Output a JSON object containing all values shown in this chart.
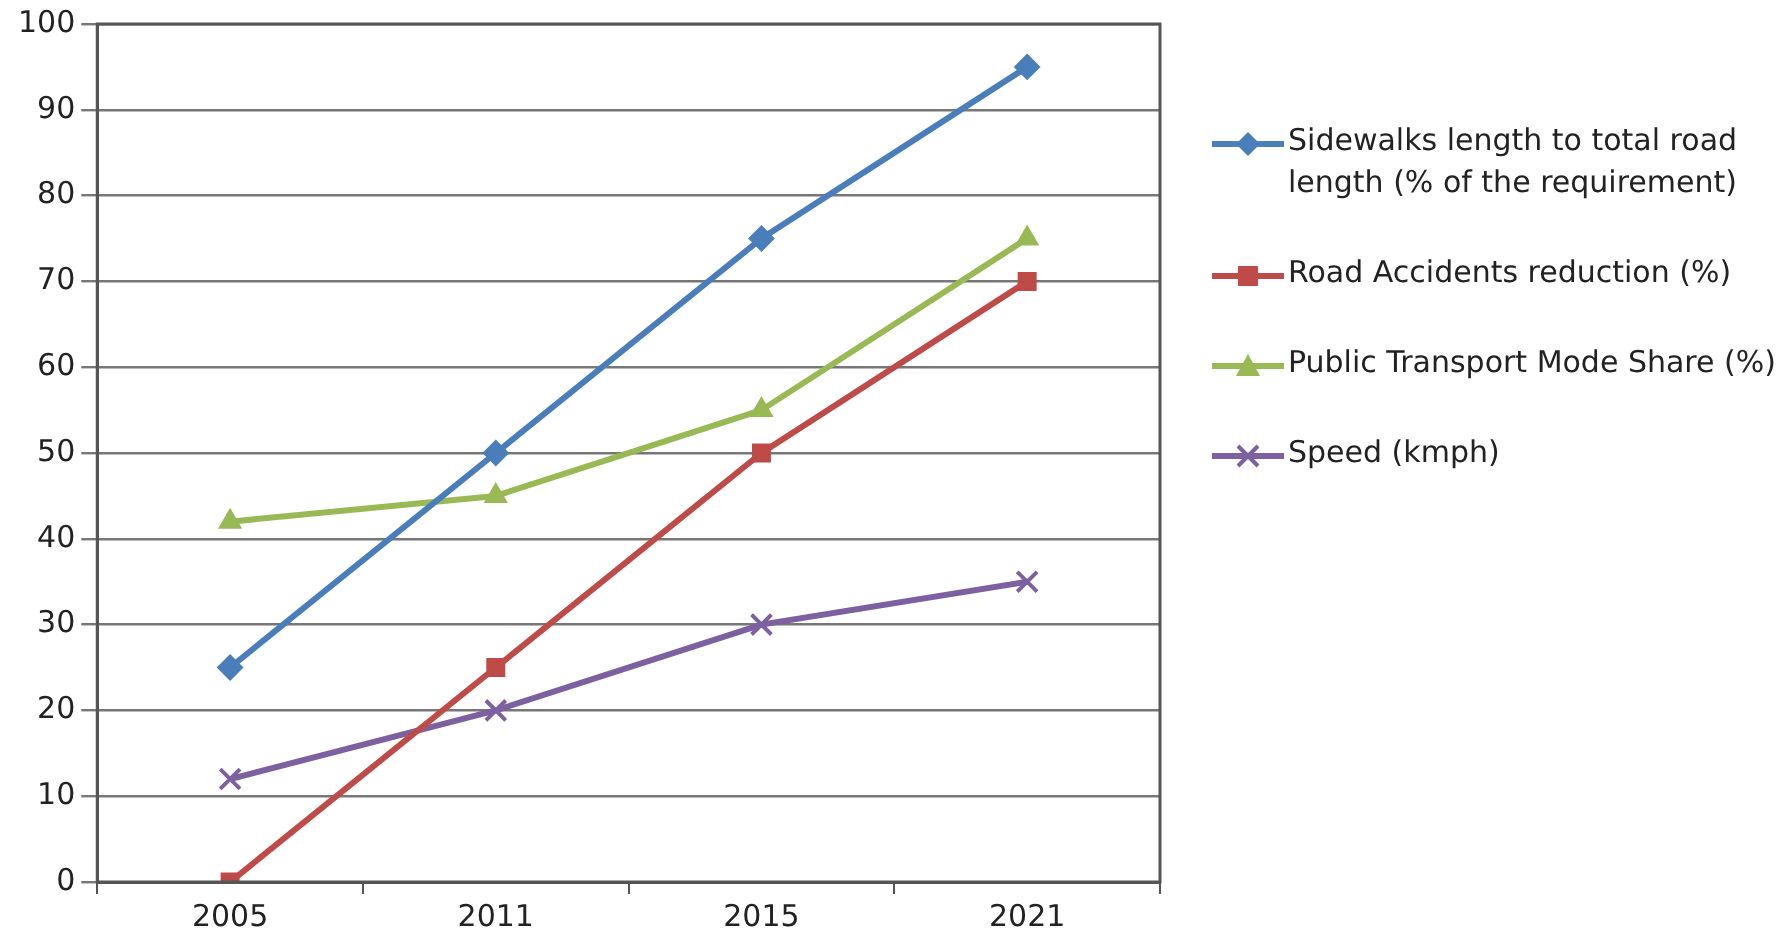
{
  "chart_data": {
    "type": "line",
    "categories": [
      "2005",
      "2011",
      "2015",
      "2021"
    ],
    "series": [
      {
        "name": "Sidewalks length to total road length (% of the requirement)",
        "color": "#4a7ebb",
        "marker": "diamond",
        "values": [
          25,
          50,
          75,
          95
        ]
      },
      {
        "name": "Road Accidents reduction (%)",
        "color": "#be4b48",
        "marker": "square",
        "values": [
          0,
          25,
          50,
          70
        ]
      },
      {
        "name": "Public Transport Mode Share (%)",
        "color": "#98b954",
        "marker": "triangle",
        "values": [
          42,
          45,
          55,
          75
        ]
      },
      {
        "name": "Speed (kmph)",
        "color": "#7d60a0",
        "marker": "cross",
        "values": [
          12,
          20,
          30,
          35
        ]
      }
    ],
    "ylim": [
      0,
      100
    ],
    "yticks": [
      0,
      10,
      20,
      30,
      40,
      50,
      60,
      70,
      80,
      90,
      100
    ],
    "grid": "y",
    "legend": "right"
  }
}
